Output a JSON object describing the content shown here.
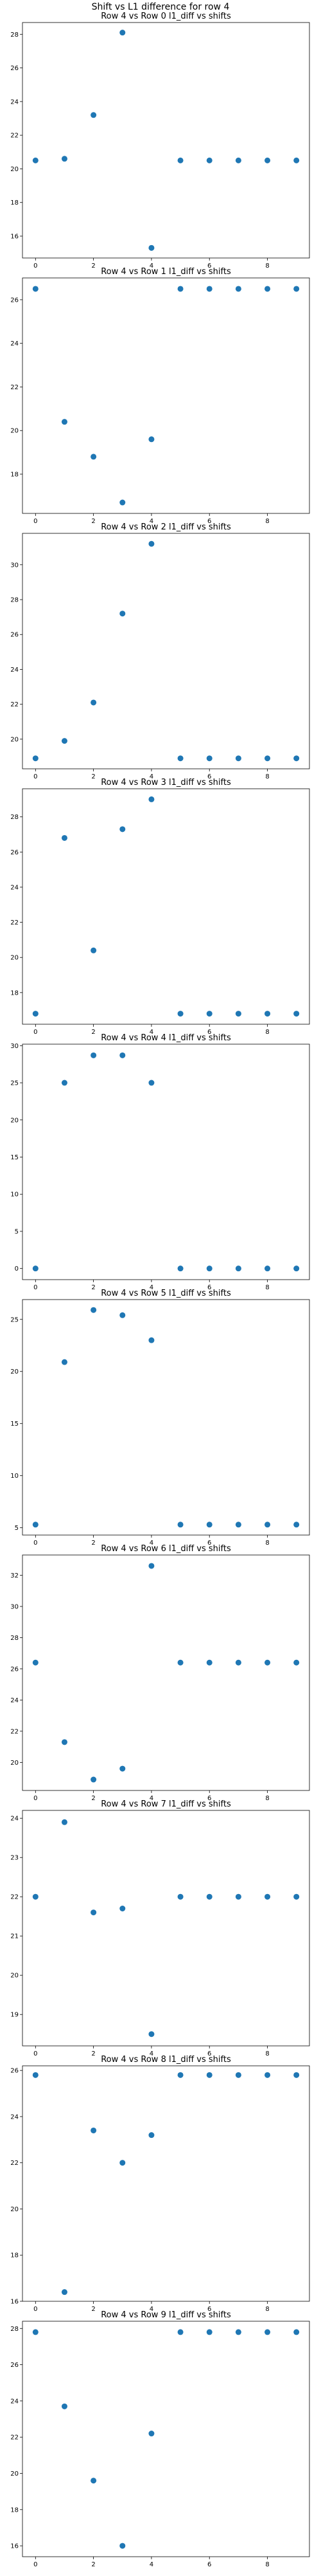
{
  "suptitle": "Shift vs L1 difference for row 4",
  "marker_color": "#1f77b4",
  "chart_data": [
    {
      "type": "scatter",
      "title": "Row 4 vs Row 0 l1_diff vs shifts",
      "x": [
        0,
        1,
        2,
        3,
        4,
        5,
        6,
        7,
        8,
        9
      ],
      "y": [
        20.5,
        20.6,
        23.2,
        28.1,
        15.3,
        20.5,
        20.5,
        20.5,
        20.5,
        20.5
      ],
      "xticks": [
        0,
        2,
        4,
        6,
        8
      ],
      "yticks": [
        16,
        18,
        20,
        22,
        24,
        26,
        28
      ],
      "xlim": [
        -0.45,
        9.45
      ],
      "ylim": [
        14.7,
        28.7
      ]
    },
    {
      "type": "scatter",
      "title": "Row 4 vs Row 1 l1_diff vs shifts",
      "x": [
        0,
        1,
        2,
        3,
        4,
        5,
        6,
        7,
        8,
        9
      ],
      "y": [
        26.5,
        20.4,
        18.8,
        16.7,
        19.6,
        26.5,
        26.5,
        26.5,
        26.5,
        26.5
      ],
      "xticks": [
        0,
        2,
        4,
        6,
        8
      ],
      "yticks": [
        18,
        20,
        22,
        24,
        26
      ],
      "xlim": [
        -0.45,
        9.45
      ],
      "ylim": [
        16.2,
        27.0
      ]
    },
    {
      "type": "scatter",
      "title": "Row 4 vs Row 2 l1_diff vs shifts",
      "x": [
        0,
        1,
        2,
        3,
        4,
        5,
        6,
        7,
        8,
        9
      ],
      "y": [
        18.9,
        19.9,
        22.1,
        27.2,
        31.2,
        18.9,
        18.9,
        18.9,
        18.9,
        18.9
      ],
      "xticks": [
        0,
        2,
        4,
        6,
        8
      ],
      "yticks": [
        20,
        22,
        24,
        26,
        28,
        30
      ],
      "xlim": [
        -0.45,
        9.45
      ],
      "ylim": [
        18.3,
        31.8
      ]
    },
    {
      "type": "scatter",
      "title": "Row 4 vs Row 3 l1_diff vs shifts",
      "x": [
        0,
        1,
        2,
        3,
        4,
        5,
        6,
        7,
        8,
        9
      ],
      "y": [
        16.8,
        26.8,
        20.4,
        27.3,
        29.0,
        16.8,
        16.8,
        16.8,
        16.8,
        16.8
      ],
      "xticks": [
        0,
        2,
        4,
        6,
        8
      ],
      "yticks": [
        18,
        20,
        22,
        24,
        26,
        28
      ],
      "xlim": [
        -0.45,
        9.45
      ],
      "ylim": [
        16.2,
        29.6
      ]
    },
    {
      "type": "scatter",
      "title": "Row 4 vs Row 4 l1_diff vs shifts",
      "x": [
        0,
        1,
        2,
        3,
        4,
        5,
        6,
        7,
        8,
        9
      ],
      "y": [
        0,
        25.0,
        28.7,
        28.7,
        25.0,
        0,
        0,
        0,
        0,
        0
      ],
      "xticks": [
        0,
        2,
        4,
        6,
        8
      ],
      "yticks": [
        0,
        5,
        10,
        15,
        20,
        25,
        30
      ],
      "xlim": [
        -0.45,
        9.45
      ],
      "ylim": [
        -1.5,
        30.2
      ]
    },
    {
      "type": "scatter",
      "title": "Row 4 vs Row 5 l1_diff vs shifts",
      "x": [
        0,
        1,
        2,
        3,
        4,
        5,
        6,
        7,
        8,
        9
      ],
      "y": [
        5.3,
        20.9,
        25.9,
        25.4,
        23.0,
        5.3,
        5.3,
        5.3,
        5.3,
        5.3
      ],
      "xticks": [
        0,
        2,
        4,
        6,
        8
      ],
      "yticks": [
        5,
        10,
        15,
        20,
        25
      ],
      "xlim": [
        -0.45,
        9.45
      ],
      "ylim": [
        4.3,
        26.9
      ]
    },
    {
      "type": "scatter",
      "title": "Row 4 vs Row 6 l1_diff vs shifts",
      "x": [
        0,
        1,
        2,
        3,
        4,
        5,
        6,
        7,
        8,
        9
      ],
      "y": [
        26.4,
        21.3,
        18.9,
        19.6,
        32.6,
        26.4,
        26.4,
        26.4,
        26.4,
        26.4
      ],
      "xticks": [
        0,
        2,
        4,
        6,
        8
      ],
      "yticks": [
        20,
        22,
        24,
        26,
        28,
        30,
        32
      ],
      "xlim": [
        -0.45,
        9.45
      ],
      "ylim": [
        18.2,
        33.3
      ]
    },
    {
      "type": "scatter",
      "title": "Row 4 vs Row 7 l1_diff vs shifts",
      "x": [
        0,
        1,
        2,
        3,
        4,
        5,
        6,
        7,
        8,
        9
      ],
      "y": [
        22.0,
        23.9,
        21.6,
        21.7,
        18.5,
        22.0,
        22.0,
        22.0,
        22.0,
        22.0
      ],
      "xticks": [
        0,
        2,
        4,
        6,
        8
      ],
      "yticks": [
        19,
        20,
        21,
        22,
        23,
        24
      ],
      "xlim": [
        -0.45,
        9.45
      ],
      "ylim": [
        18.2,
        24.2
      ]
    },
    {
      "type": "scatter",
      "title": "Row 4 vs Row 8 l1_diff vs shifts",
      "x": [
        0,
        1,
        2,
        3,
        4,
        5,
        6,
        7,
        8,
        9
      ],
      "y": [
        25.8,
        16.4,
        23.4,
        22.0,
        23.2,
        25.8,
        25.8,
        25.8,
        25.8,
        25.8
      ],
      "xticks": [
        0,
        2,
        4,
        6,
        8
      ],
      "yticks": [
        16,
        18,
        20,
        22,
        24,
        26
      ],
      "xlim": [
        -0.45,
        9.45
      ],
      "ylim": [
        16.0,
        26.2
      ]
    },
    {
      "type": "scatter",
      "title": "Row 4 vs Row 9 l1_diff vs shifts",
      "x": [
        0,
        1,
        2,
        3,
        4,
        5,
        6,
        7,
        8,
        9
      ],
      "y": [
        27.8,
        23.7,
        19.6,
        16.0,
        22.2,
        27.8,
        27.8,
        27.8,
        27.8,
        27.8
      ],
      "xticks": [
        0,
        2,
        4,
        6,
        8
      ],
      "yticks": [
        16,
        18,
        20,
        22,
        24,
        26,
        28
      ],
      "xlim": [
        -0.45,
        9.45
      ],
      "ylim": [
        15.4,
        28.4
      ]
    }
  ]
}
